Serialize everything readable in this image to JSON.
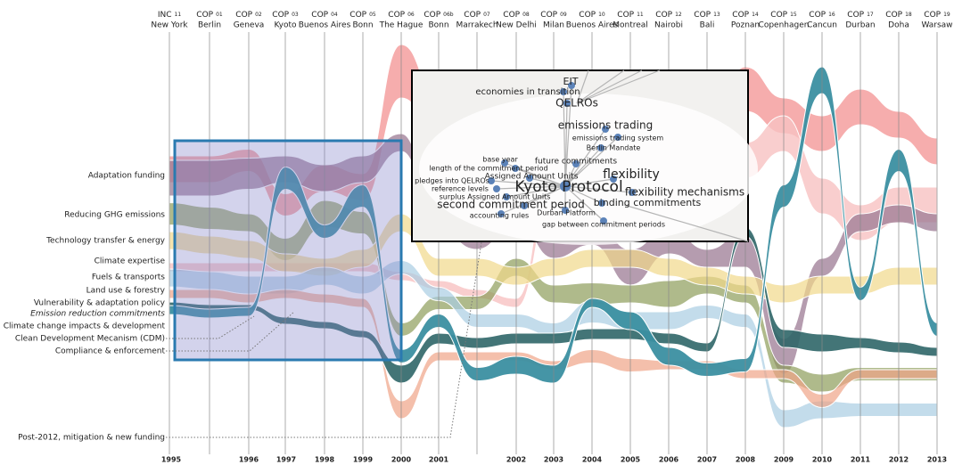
{
  "meetings": [
    {
      "kind": "INC",
      "num": "11",
      "place": "New York"
    },
    {
      "kind": "COP",
      "num": "01",
      "place": "Berlin"
    },
    {
      "kind": "COP",
      "num": "02",
      "place": "Geneva"
    },
    {
      "kind": "COP",
      "num": "03",
      "place": "Kyoto"
    },
    {
      "kind": "COP",
      "num": "04",
      "place": "Buenos Aires"
    },
    {
      "kind": "COP",
      "num": "05",
      "place": "Bonn"
    },
    {
      "kind": "COP",
      "num": "06",
      "place": "The Hague"
    },
    {
      "kind": "COP",
      "num": "06b",
      "place": "Bonn"
    },
    {
      "kind": "COP",
      "num": "07",
      "place": "Marrakech"
    },
    {
      "kind": "COP",
      "num": "08",
      "place": "New Delhi"
    },
    {
      "kind": "COP",
      "num": "09",
      "place": "Milan"
    },
    {
      "kind": "COP",
      "num": "10",
      "place": "Buenos Aires"
    },
    {
      "kind": "COP",
      "num": "11",
      "place": "Montreal"
    },
    {
      "kind": "COP",
      "num": "12",
      "place": "Nairobi"
    },
    {
      "kind": "COP",
      "num": "13",
      "place": "Bali"
    },
    {
      "kind": "COP",
      "num": "14",
      "place": "Poznan"
    },
    {
      "kind": "COP",
      "num": "15",
      "place": "Copenhagen"
    },
    {
      "kind": "COP",
      "num": "16",
      "place": "Cancun"
    },
    {
      "kind": "COP",
      "num": "17",
      "place": "Durban"
    },
    {
      "kind": "COP",
      "num": "18",
      "place": "Doha"
    },
    {
      "kind": "COP",
      "num": "19",
      "place": "Warsaw"
    }
  ],
  "years": [
    "1995",
    "1996",
    "1997",
    "1998",
    "1999",
    "2000",
    "2001",
    "2002",
    "2003",
    "2004",
    "2005",
    "2006",
    "2007",
    "2008",
    "2009",
    "2010",
    "2011",
    "2012",
    "2013"
  ],
  "topics": [
    "Adaptation funding",
    "Reducing GHG emissions",
    "Technology transfer & energy",
    "Climate expertise",
    "Fuels & transports",
    "Land use & forestry",
    "Vulnerability & adaptation policy",
    "Emission reduction commitments",
    "Climate change impacts & development",
    "Clean Development Mecanism (CDM)",
    "Compliance & enforcement",
    "Post-2012, mitigation & new funding"
  ],
  "network": {
    "nodes": [
      "EIT",
      "economies in transition",
      "QELROs",
      "emissions trading",
      "emissions trading system",
      "Berlin Mandate",
      "future commitments",
      "base year",
      "length of the commitment period",
      "Assigned Amount Units",
      "flexibility",
      "pledges into QELROs",
      "reference levels",
      "surplus Assigned Amount Units",
      "Kyoto Protocol",
      "flexibility mechanisms",
      "second commitment period",
      "binding commitments",
      "accounting rules",
      "Durban Platform",
      "gap between commitment periods"
    ]
  }
}
